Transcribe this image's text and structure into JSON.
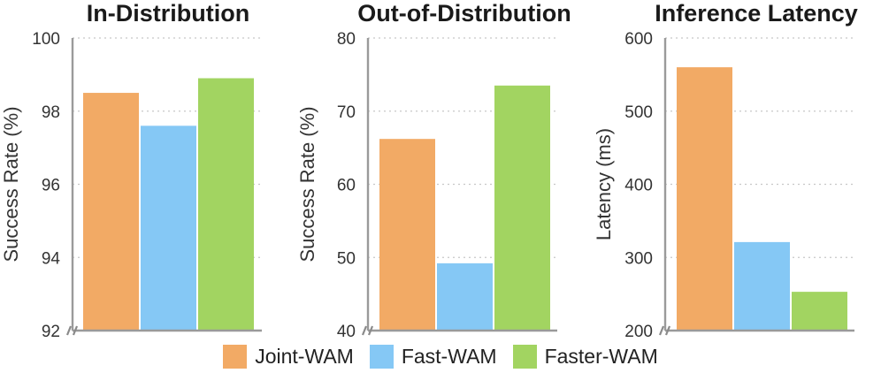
{
  "chart_data": [
    {
      "type": "bar",
      "title": "In-Distribution",
      "ylabel": "Success Rate (%)",
      "xlabel": "",
      "categories": [
        "Joint-WAM",
        "Fast-WAM",
        "Faster-WAM"
      ],
      "values": [
        98.5,
        97.6,
        98.9
      ],
      "ylim": [
        92,
        100
      ],
      "yticks": [
        92,
        94,
        96,
        98,
        100
      ],
      "grid": true
    },
    {
      "type": "bar",
      "title": "Out-of-Distribution",
      "ylabel": "Success Rate (%)",
      "xlabel": "",
      "categories": [
        "Joint-WAM",
        "Fast-WAM",
        "Faster-WAM"
      ],
      "values": [
        66.2,
        49.2,
        73.5
      ],
      "ylim": [
        40,
        80
      ],
      "yticks": [
        40,
        50,
        60,
        70,
        80
      ],
      "grid": true
    },
    {
      "type": "bar",
      "title": "Inference Latency",
      "ylabel": "Latency (ms)",
      "xlabel": "",
      "categories": [
        "Joint-WAM",
        "Fast-WAM",
        "Faster-WAM"
      ],
      "values": [
        560,
        321,
        253
      ],
      "ylim": [
        200,
        600
      ],
      "yticks": [
        200,
        300,
        400,
        500,
        600
      ],
      "grid": true
    }
  ],
  "legend": {
    "position": "bottom-center",
    "items": [
      {
        "label": "Joint-WAM",
        "color": "#f2aa65"
      },
      {
        "label": "Fast-WAM",
        "color": "#85c8f5"
      },
      {
        "label": "Faster-WAM",
        "color": "#a2d461"
      }
    ]
  }
}
